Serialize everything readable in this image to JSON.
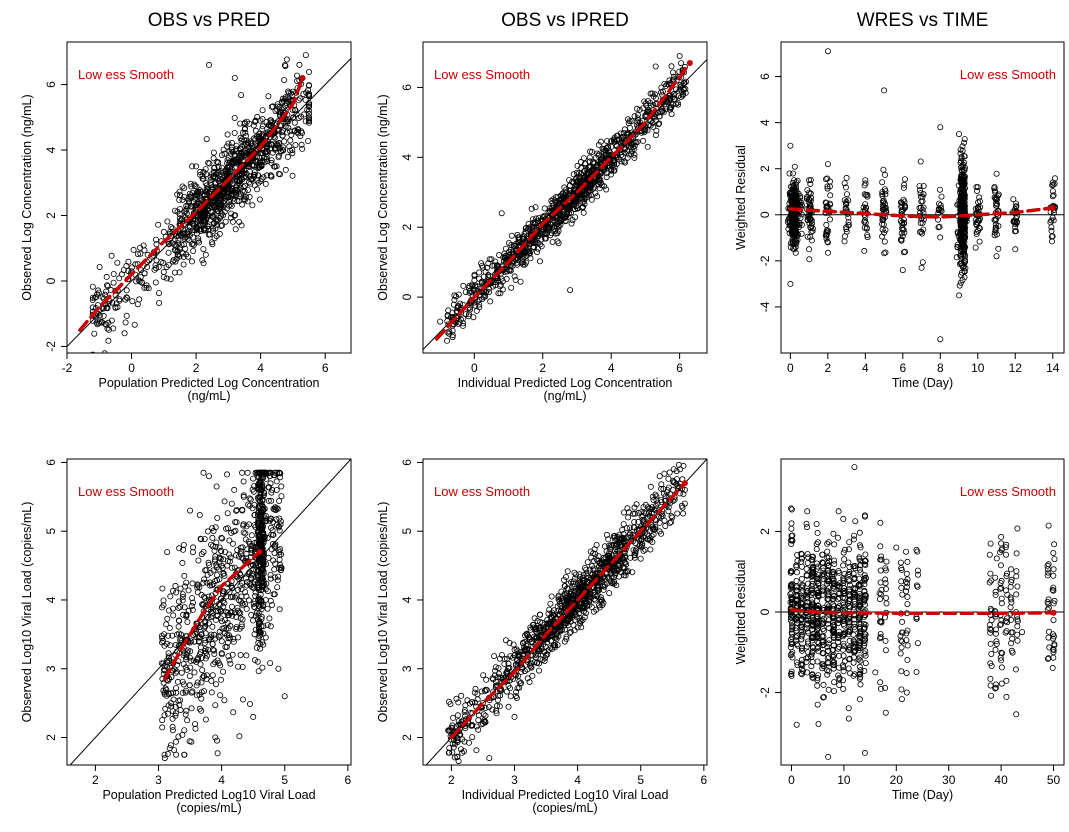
{
  "chart_data": [
    {
      "type": "scatter",
      "title": "OBS vs PRED",
      "xlabel": "Population Predicted Log Concentration",
      "xlabel_units": "(ng/mL)",
      "ylabel": "Observed Log Concentration (ng/mL)",
      "xlim": [
        -2,
        6.8
      ],
      "ylim": [
        -2.2,
        7.3
      ],
      "xticks": [
        "-2",
        "0",
        "2",
        "4",
        "6"
      ],
      "yticks": [
        "-2",
        "0",
        "2",
        "4",
        "6"
      ],
      "annotation": "Low ess Smooth",
      "reference_line": "identity",
      "smooth": [
        [
          -1.6,
          -1.5
        ],
        [
          -1,
          -0.8
        ],
        [
          0,
          0.2
        ],
        [
          1,
          1.2
        ],
        [
          2,
          2.1
        ],
        [
          3,
          3.1
        ],
        [
          4,
          4.1
        ],
        [
          5,
          5.4
        ],
        [
          5.3,
          6.2
        ]
      ],
      "sample_points": [
        [
          -0.9,
          -0.5
        ],
        [
          -0.5,
          -0.3
        ],
        [
          0,
          0.3
        ],
        [
          0.5,
          0.8
        ],
        [
          1,
          1.5
        ],
        [
          1.5,
          2.2
        ],
        [
          2,
          2
        ],
        [
          2,
          3.5
        ],
        [
          2.3,
          0.8
        ],
        [
          2.5,
          2.8
        ],
        [
          3,
          3
        ],
        [
          3,
          4.2
        ],
        [
          3.5,
          2.5
        ],
        [
          3.5,
          4.8
        ],
        [
          4,
          4.2
        ],
        [
          4.5,
          4.8
        ],
        [
          5,
          5.5
        ],
        [
          5.2,
          6.6
        ],
        [
          5.4,
          6.9
        ],
        [
          2.4,
          6.6
        ],
        [
          3.2,
          6.2
        ]
      ]
    },
    {
      "type": "scatter",
      "title": "OBS vs IPRED",
      "xlabel": "Individual Predicted Log Concentration",
      "xlabel_units": "(ng/mL)",
      "ylabel": "Observed Log Concentration (ng/mL)",
      "xlim": [
        -1.5,
        6.8
      ],
      "ylim": [
        -1.6,
        7.3
      ],
      "xticks": [
        "0",
        "2",
        "4",
        "6"
      ],
      "yticks": [
        "0",
        "2",
        "4",
        "6"
      ],
      "annotation": "Low ess Smooth",
      "reference_line": "identity",
      "smooth": [
        [
          -1.1,
          -1.2
        ],
        [
          0,
          0
        ],
        [
          1,
          1
        ],
        [
          2,
          2.1
        ],
        [
          3,
          3
        ],
        [
          4,
          4
        ],
        [
          5,
          5
        ],
        [
          6,
          6.3
        ],
        [
          6.3,
          6.7
        ]
      ],
      "sample_points": [
        [
          -1,
          -0.7
        ],
        [
          -0.5,
          -0.6
        ],
        [
          0,
          0.2
        ],
        [
          0.8,
          2.4
        ],
        [
          1,
          1.2
        ],
        [
          1.5,
          1.6
        ],
        [
          2,
          2.3
        ],
        [
          2.5,
          2.2
        ],
        [
          2.8,
          0.2
        ],
        [
          3,
          3.2
        ],
        [
          3.5,
          3.4
        ],
        [
          4,
          4.3
        ],
        [
          4.5,
          4.4
        ],
        [
          5,
          5.2
        ],
        [
          5.3,
          6.6
        ],
        [
          5.7,
          6.2
        ],
        [
          6,
          6.9
        ]
      ]
    },
    {
      "type": "scatter",
      "title": "WRES vs TIME",
      "xlabel": "Time (Day)",
      "ylabel": "Weighted Residual",
      "xlim": [
        -0.5,
        14.6
      ],
      "ylim": [
        -6,
        7.5
      ],
      "xticks": [
        "0",
        "2",
        "4",
        "6",
        "8",
        "10",
        "12",
        "14"
      ],
      "yticks": [
        "-4",
        "-2",
        "0",
        "2",
        "4",
        "6"
      ],
      "annotation": "Low ess Smooth",
      "reference_line": "y=0",
      "smooth": [
        [
          0,
          0.25
        ],
        [
          2,
          0.15
        ],
        [
          4,
          0.05
        ],
        [
          6,
          -0.05
        ],
        [
          8,
          -0.1
        ],
        [
          9,
          -0.05
        ],
        [
          10,
          0
        ],
        [
          12,
          0.1
        ],
        [
          14,
          0.3
        ]
      ],
      "sample_points": [
        [
          0,
          3
        ],
        [
          0,
          -3
        ],
        [
          0.2,
          1.5
        ],
        [
          1,
          1.5
        ],
        [
          1,
          -1.5
        ],
        [
          2,
          7.1
        ],
        [
          2,
          2.2
        ],
        [
          2,
          -1.2
        ],
        [
          3,
          1.6
        ],
        [
          4,
          1.5
        ],
        [
          5,
          5.4
        ],
        [
          6,
          -2.4
        ],
        [
          7,
          -2.3
        ],
        [
          8,
          3.8
        ],
        [
          8,
          -5.4
        ],
        [
          9,
          3.5
        ],
        [
          9,
          -3.5
        ],
        [
          10,
          1.2
        ],
        [
          11,
          -1.8
        ],
        [
          12,
          -1.5
        ],
        [
          14,
          1.4
        ],
        [
          14,
          0.8
        ]
      ]
    },
    {
      "type": "scatter",
      "title": "",
      "xlabel": "Population Predicted Log10 Viral Load",
      "xlabel_units": "(copies/mL)",
      "ylabel": "Observed Log10 Viral Load (copies/mL)",
      "xlim": [
        1.55,
        6.05
      ],
      "ylim": [
        1.6,
        6.05
      ],
      "xticks": [
        "2",
        "3",
        "4",
        "5",
        "6"
      ],
      "yticks": [
        "2",
        "3",
        "4",
        "5",
        "6"
      ],
      "annotation": "Low ess Smooth",
      "reference_line": "identity",
      "smooth": [
        [
          3.1,
          2.85
        ],
        [
          3.4,
          3.35
        ],
        [
          3.7,
          3.8
        ],
        [
          4,
          4.2
        ],
        [
          4.3,
          4.45
        ],
        [
          4.6,
          4.7
        ]
      ],
      "sample_points": [
        [
          3.1,
          1.7
        ],
        [
          3.2,
          2.5
        ],
        [
          3.4,
          4.8
        ],
        [
          3.5,
          5.3
        ],
        [
          3.6,
          3.1
        ],
        [
          3.8,
          5.8
        ],
        [
          3.9,
          2.0
        ],
        [
          4.0,
          4.5
        ],
        [
          4.2,
          5.6
        ],
        [
          4.3,
          3.2
        ],
        [
          4.5,
          2.3
        ],
        [
          4.6,
          5.7
        ],
        [
          4.7,
          4.0
        ],
        [
          4.8,
          5.6
        ],
        [
          4.9,
          3.0
        ],
        [
          5.0,
          2.6
        ]
      ]
    },
    {
      "type": "scatter",
      "title": "",
      "xlabel": "Individual Predicted Log10 Viral Load",
      "xlabel_units": "(copies/mL)",
      "ylabel": "Observed Log10 Viral Load (copies/mL)",
      "xlim": [
        1.55,
        6.05
      ],
      "ylim": [
        1.6,
        6.05
      ],
      "xticks": [
        "2",
        "3",
        "4",
        "5",
        "6"
      ],
      "yticks": [
        "2",
        "3",
        "4",
        "5",
        "6"
      ],
      "annotation": "Low ess Smooth",
      "reference_line": "identity",
      "smooth": [
        [
          2,
          2
        ],
        [
          2.5,
          2.5
        ],
        [
          3,
          2.95
        ],
        [
          3.5,
          3.5
        ],
        [
          4,
          4
        ],
        [
          4.5,
          4.5
        ],
        [
          5,
          5
        ],
        [
          5.5,
          5.5
        ],
        [
          5.7,
          5.7
        ]
      ],
      "sample_points": [
        [
          2,
          2.1
        ],
        [
          2.2,
          1.8
        ],
        [
          2.5,
          2.2
        ],
        [
          2.6,
          1.7
        ],
        [
          2.8,
          3.2
        ],
        [
          3,
          2.3
        ],
        [
          3.3,
          3.6
        ],
        [
          3.5,
          3.2
        ],
        [
          3.8,
          4.2
        ],
        [
          4,
          3.6
        ],
        [
          4.3,
          4.8
        ],
        [
          4.5,
          4.1
        ],
        [
          4.8,
          5.2
        ],
        [
          5,
          4.6
        ],
        [
          5.3,
          5.8
        ],
        [
          5.5,
          5.2
        ],
        [
          5.7,
          5.6
        ]
      ]
    },
    {
      "type": "scatter",
      "title": "",
      "xlabel": "Time (Day)",
      "ylabel": "Weighted Residual",
      "xlim": [
        -2,
        52
      ],
      "ylim": [
        -3.8,
        3.8
      ],
      "xticks": [
        "0",
        "10",
        "20",
        "30",
        "40",
        "50"
      ],
      "yticks": [
        "-2",
        "0",
        "2"
      ],
      "annotation": "Low ess Smooth",
      "reference_line": "y=0",
      "smooth": [
        [
          0,
          0.05
        ],
        [
          5,
          0
        ],
        [
          10,
          -0.02
        ],
        [
          20,
          -0.03
        ],
        [
          30,
          -0.03
        ],
        [
          40,
          -0.03
        ],
        [
          50,
          -0.02
        ]
      ],
      "sample_points": [
        [
          0,
          2.2
        ],
        [
          1,
          -2.8
        ],
        [
          3,
          2.5
        ],
        [
          5,
          -2.3
        ],
        [
          7,
          -3.6
        ],
        [
          9,
          2.5
        ],
        [
          12,
          3.6
        ],
        [
          14,
          -3.5
        ],
        [
          14,
          2.4
        ],
        [
          16,
          -1.5
        ],
        [
          18,
          -2.5
        ],
        [
          20,
          1.6
        ],
        [
          22,
          -2.0
        ],
        [
          24,
          1.5
        ],
        [
          38,
          1.7
        ],
        [
          39,
          -1.8
        ],
        [
          40,
          -1.2
        ],
        [
          42,
          0.8
        ],
        [
          44,
          -0.5
        ],
        [
          49,
          0.2
        ],
        [
          50,
          -0.2
        ]
      ]
    }
  ],
  "colors": {
    "smooth": "#cc0000",
    "annotation": "#cc0000",
    "points": "#000000",
    "reference": "#000000"
  }
}
